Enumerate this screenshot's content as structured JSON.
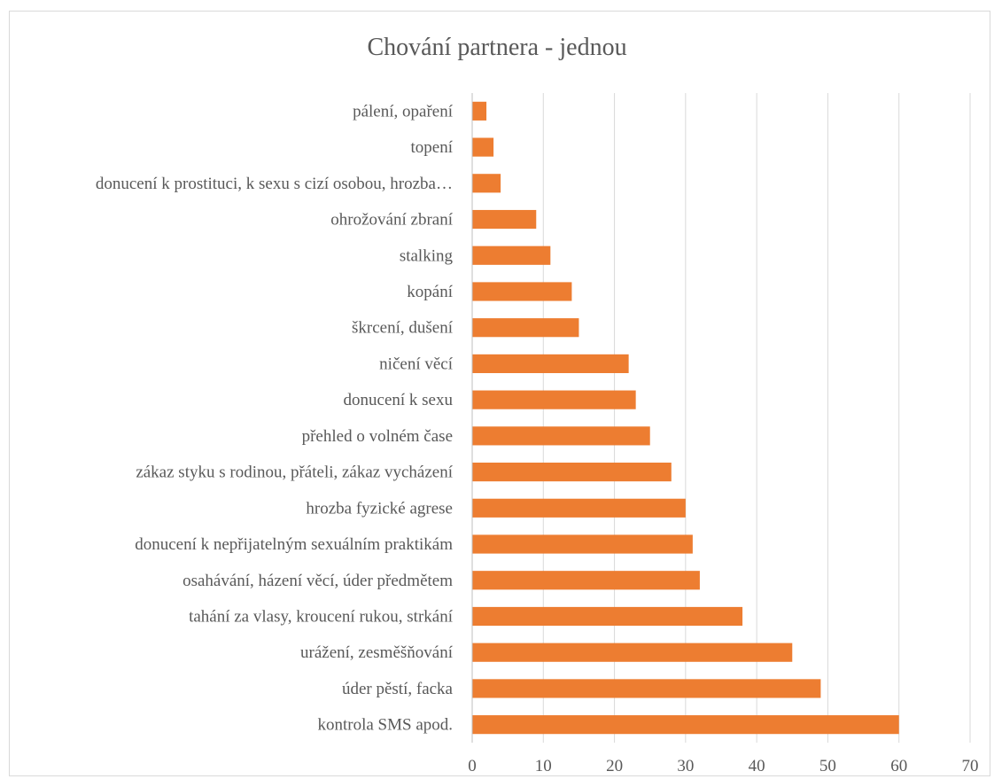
{
  "chart_data": {
    "type": "bar",
    "orientation": "horizontal",
    "title": "Chování partnera - jednou",
    "categories": [
      "pálení, opaření",
      "topení",
      "donucení k prostituci, k sexu s cizí osobou, hrozba…",
      "ohrožování zbraní",
      "stalking",
      "kopání",
      "škrcení, dušení",
      "ničení věcí",
      "donucení k sexu",
      "přehled o volném čase",
      "zákaz styku s rodinou, přáteli, zákaz vycházení",
      "hrozba fyzické agrese",
      "donucení k nepřijatelným sexuálním praktikám",
      "osahávání, házení věcí, úder předmětem",
      "tahání za vlasy, kroucení rukou, strkání",
      "urážení, zesměšňování",
      "úder pěstí, facka",
      "kontrola SMS apod."
    ],
    "values": [
      2,
      3,
      4,
      9,
      11,
      14,
      15,
      22,
      23,
      25,
      28,
      30,
      31,
      32,
      38,
      45,
      49,
      60
    ],
    "xlim": [
      0,
      70
    ],
    "xticks": [
      "0",
      "10",
      "20",
      "30",
      "40",
      "50",
      "60",
      "70"
    ],
    "grid": true,
    "legend": "none",
    "bar_color": "#ED7D31"
  }
}
